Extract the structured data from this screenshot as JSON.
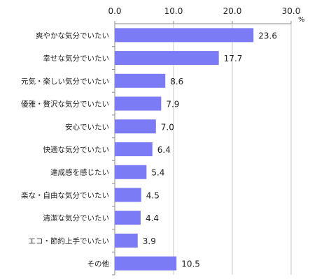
{
  "chart_data": {
    "type": "bar",
    "orientation": "horizontal",
    "categories": [
      "爽やかな気分でいたい",
      "幸せな気分でいたい",
      "元気・楽しい気分でいたい",
      "優雅・贅沢な気分でいたい",
      "安心でいたい",
      "快適な気分でいたい",
      "達成感を感じたい",
      "楽な・自由な気分でいたい",
      "清潔な気分でいたい",
      "エコ・節約上手でいたい",
      "その他"
    ],
    "values": [
      23.6,
      17.7,
      8.6,
      7.9,
      7.0,
      6.4,
      5.4,
      4.5,
      4.4,
      3.9,
      10.5
    ],
    "value_labels": [
      "23.6",
      "17.7",
      "8.6",
      "7.9",
      "7.0",
      "6.4",
      "5.4",
      "4.5",
      "4.4",
      "3.9",
      "10.5"
    ],
    "xlim": [
      0,
      30
    ],
    "x_ticks": [
      0,
      10,
      20,
      30
    ],
    "x_tick_labels": [
      "0.0",
      "10.0",
      "20.0",
      "30.0"
    ],
    "x_axis_position": "top",
    "unit": "%",
    "grid": true,
    "bar_color": "#7b7bf5",
    "grid_color": "#c8c8c8",
    "axis_color": "#8a8a8a"
  }
}
